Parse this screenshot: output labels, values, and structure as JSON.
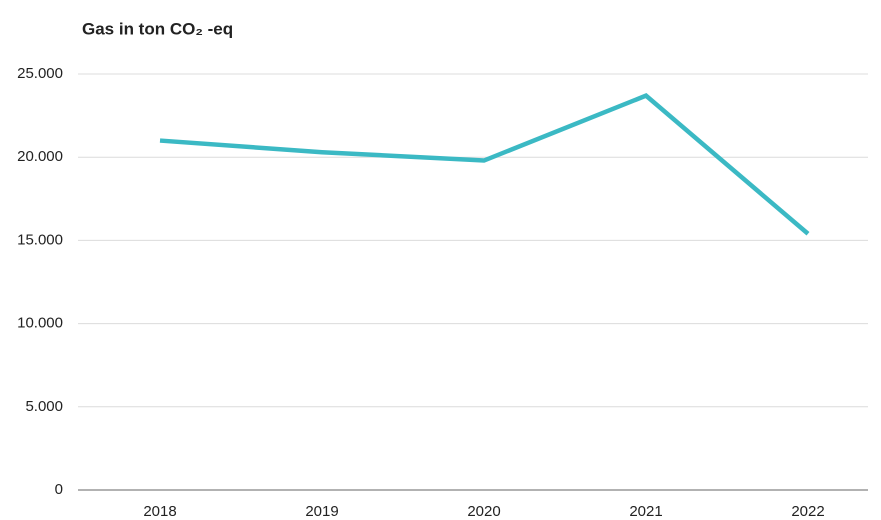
{
  "chart_data": {
    "type": "line",
    "title": "Gas in ton CO₂ -eq",
    "categories": [
      "2018",
      "2019",
      "2020",
      "2021",
      "2022"
    ],
    "series": [
      {
        "name": "Gas",
        "color": "#3bb9c4",
        "values": [
          21000,
          20300,
          19800,
          23700,
          15400
        ]
      }
    ],
    "ylim": [
      0,
      25000
    ],
    "yticks": [
      0,
      {
        "value": 5000,
        "label": "5.000"
      },
      {
        "value": 10000,
        "label": "10.000"
      },
      {
        "value": 15000,
        "label": "15.000"
      },
      {
        "value": 20000,
        "label": "20.000"
      },
      {
        "value": 25000,
        "label": "25.000"
      }
    ],
    "grid": true
  }
}
